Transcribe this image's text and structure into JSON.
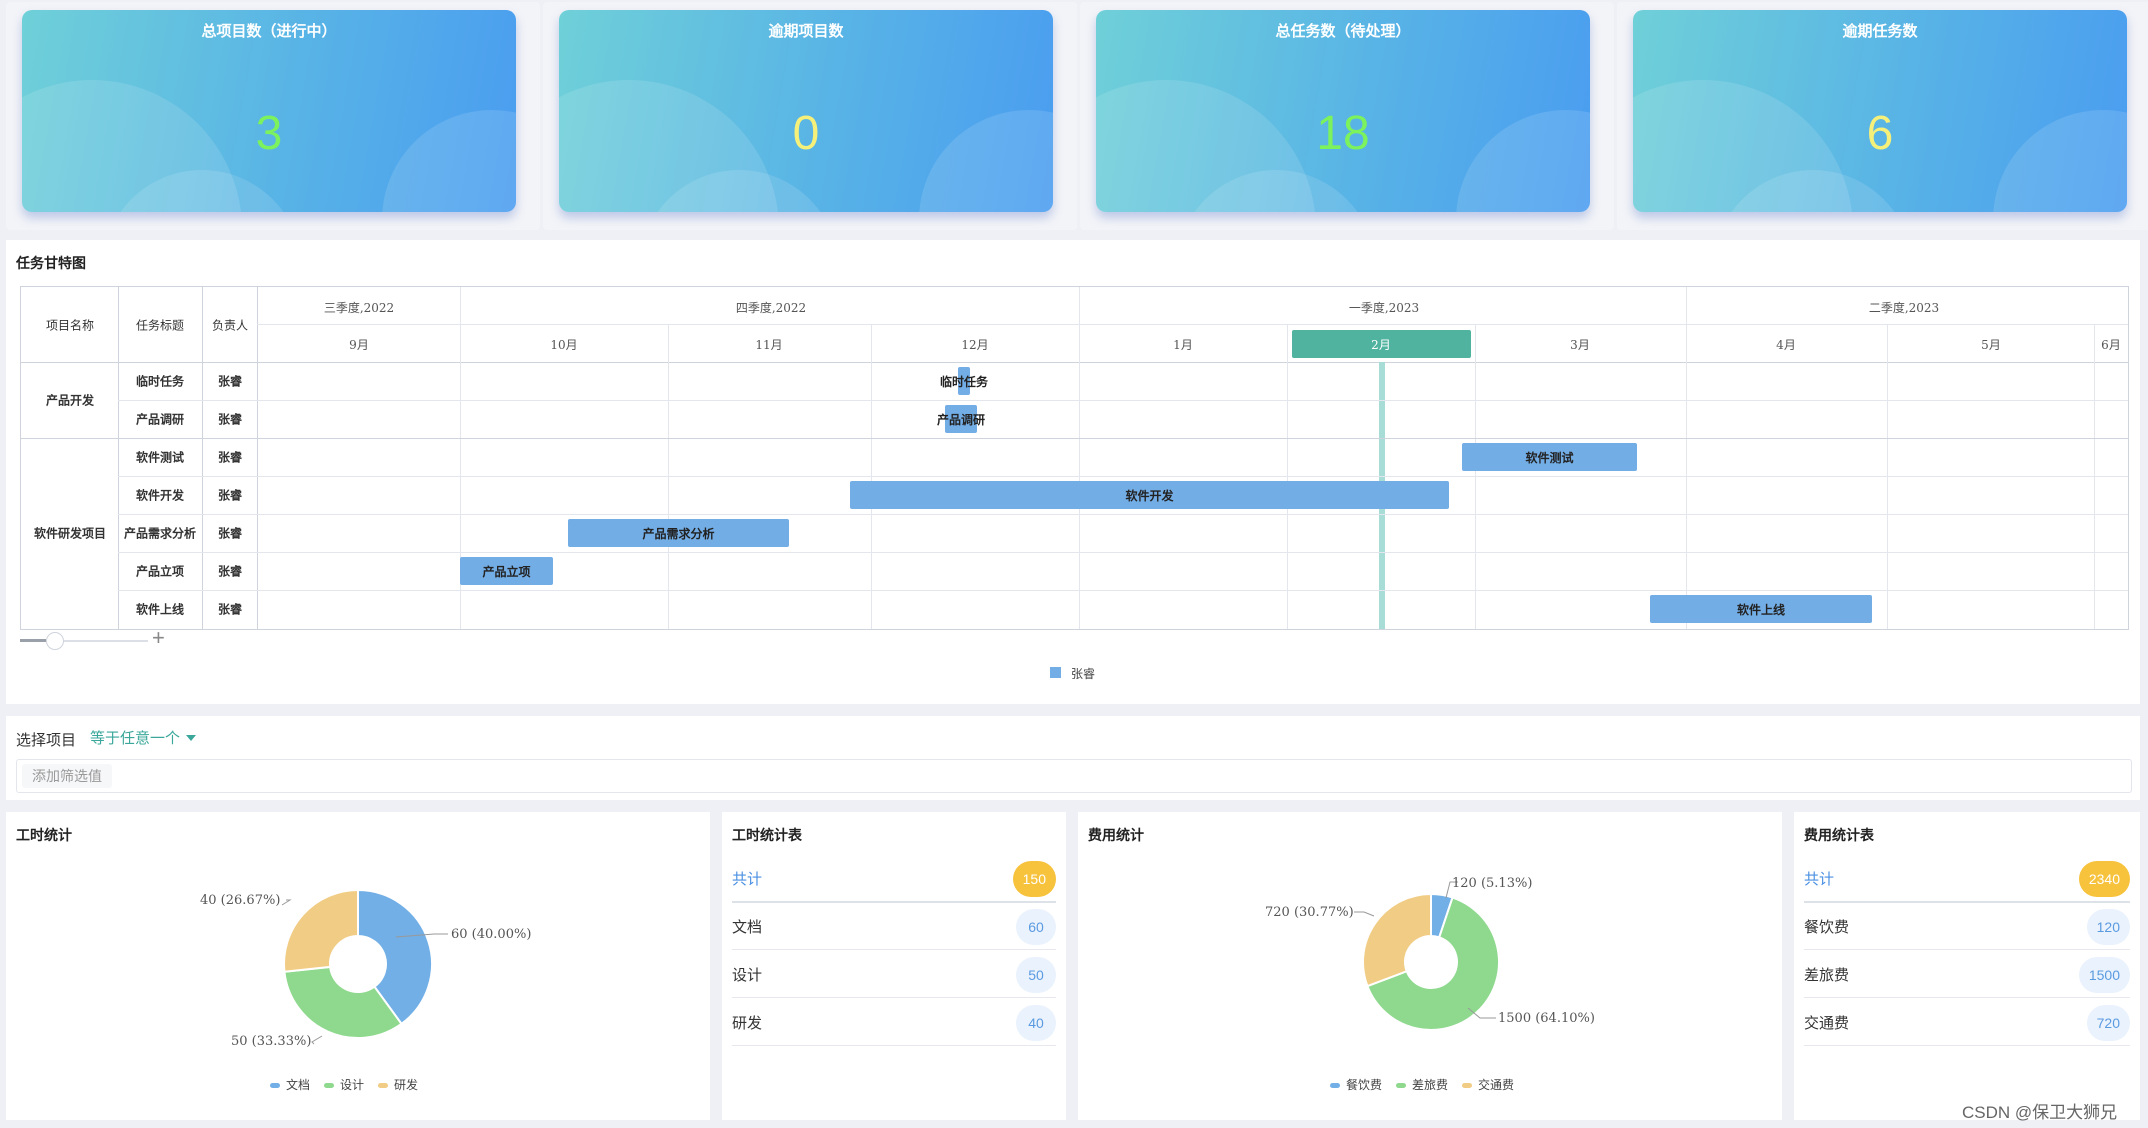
{
  "kpis": [
    {
      "title": "总项目数（进行中）",
      "value": "3",
      "color": "#7cf25c"
    },
    {
      "title": "逾期项目数",
      "value": "0",
      "color": "#f5f07a"
    },
    {
      "title": "总任务数（待处理）",
      "value": "18",
      "color": "#7cf25c"
    },
    {
      "title": "逾期任务数",
      "value": "6",
      "color": "#f5f07a"
    }
  ],
  "gantt": {
    "title": "任务甘特图",
    "headers": {
      "project": "项目名称",
      "task": "任务标题",
      "owner": "负责人"
    },
    "quarters": [
      "三季度,2022",
      "四季度,2022",
      "一季度,2023",
      "二季度,2023"
    ],
    "months": [
      "9月",
      "10月",
      "11月",
      "12月",
      "1月",
      "2月",
      "3月",
      "4月",
      "5月",
      "6月"
    ],
    "projects": [
      "产品开发",
      "软件研发项目"
    ],
    "tasks": [
      {
        "task": "临时任务",
        "owner": "张睿",
        "bar": "临时任务"
      },
      {
        "task": "产品调研",
        "owner": "张睿",
        "bar": "产品调研"
      },
      {
        "task": "软件测试",
        "owner": "张睿",
        "bar": "软件测试"
      },
      {
        "task": "软件开发",
        "owner": "张睿",
        "bar": "软件开发"
      },
      {
        "task": "产品需求分析",
        "owner": "张睿",
        "bar": "产品需求分析"
      },
      {
        "task": "产品立项",
        "owner": "张睿",
        "bar": "产品立项"
      },
      {
        "task": "软件上线",
        "owner": "张睿",
        "bar": "软件上线"
      }
    ],
    "legend": "张睿",
    "bar_color": "#73ade6",
    "highlight_color": "#4fb39f"
  },
  "filter": {
    "label": "选择项目",
    "operator": "等于任意一个",
    "placeholder": "添加筛选值"
  },
  "hours_chart": {
    "title": "工时统计",
    "chart_data": {
      "type": "pie",
      "categories": [
        "文档",
        "设计",
        "研发"
      ],
      "values": [
        60,
        50,
        40
      ],
      "labels": [
        "60 (40.00%)",
        "50 (33.33%)",
        "40 (26.67%)"
      ],
      "colors": [
        "#72afe6",
        "#8fd98f",
        "#f1cc84"
      ]
    }
  },
  "hours_table": {
    "title": "工时统计表",
    "total_label": "共计",
    "total": "150",
    "rows": [
      {
        "label": "文档",
        "value": "60"
      },
      {
        "label": "设计",
        "value": "50"
      },
      {
        "label": "研发",
        "value": "40"
      }
    ]
  },
  "cost_chart": {
    "title": "费用统计",
    "chart_data": {
      "type": "pie",
      "categories": [
        "餐饮费",
        "差旅费",
        "交通费"
      ],
      "values": [
        120,
        1500,
        720
      ],
      "labels": [
        "120 (5.13%)",
        "1500 (64.10%)",
        "720 (30.77%)"
      ],
      "colors": [
        "#72afe6",
        "#8fd98f",
        "#f1cc84"
      ]
    }
  },
  "cost_table": {
    "title": "费用统计表",
    "total_label": "共计",
    "total": "2340",
    "rows": [
      {
        "label": "餐饮费",
        "value": "120"
      },
      {
        "label": "差旅费",
        "value": "1500"
      },
      {
        "label": "交通费",
        "value": "720"
      }
    ]
  },
  "watermark": "CSDN @保卫大狮兄"
}
